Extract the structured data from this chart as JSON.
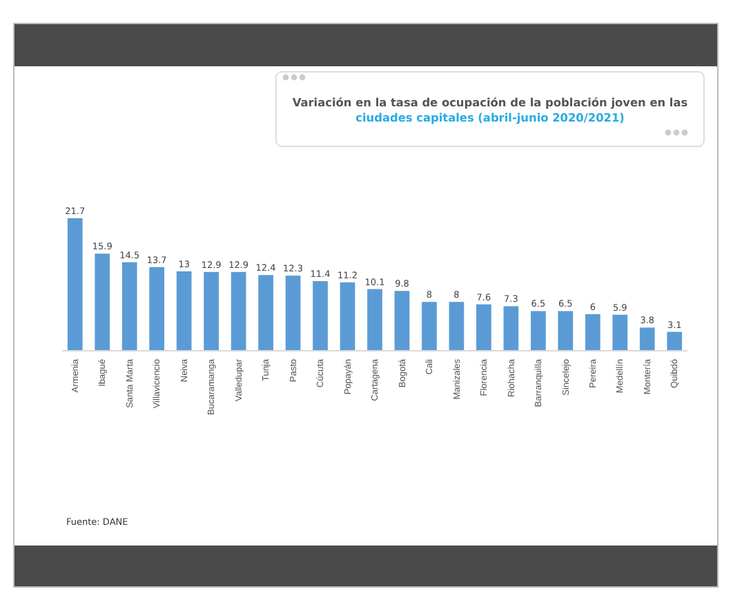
{
  "chart_data": {
    "type": "bar",
    "title": "Variación en la tasa de ocupación de la población joven en las",
    "subtitle": "ciudades capitales (abril-junio 2020/2021)",
    "categories": [
      "Armenia",
      "Ibagué",
      "Santa Marta",
      "Villavicencio",
      "Neiva",
      "Bucaramanga",
      "Valledupar",
      "Tunja",
      "Pasto",
      "Cúcuta",
      "Popayán",
      "Cartagena",
      "Bogotá",
      "Cali",
      "Manizales",
      "Florencia",
      "Riohacha",
      "Barranquilla",
      "Sincelejo",
      "Pereira",
      "Medellín",
      "Montería",
      "Quibdó"
    ],
    "values": [
      21.7,
      15.9,
      14.5,
      13.7,
      13,
      12.9,
      12.9,
      12.4,
      12.3,
      11.4,
      11.2,
      10.1,
      9.8,
      8,
      8,
      7.6,
      7.3,
      6.5,
      6.5,
      6,
      5.9,
      3.8,
      3.1
    ],
    "color": "#5b9bd5",
    "data_labels": true,
    "annotations": [
      "Fuente: DANE"
    ]
  }
}
